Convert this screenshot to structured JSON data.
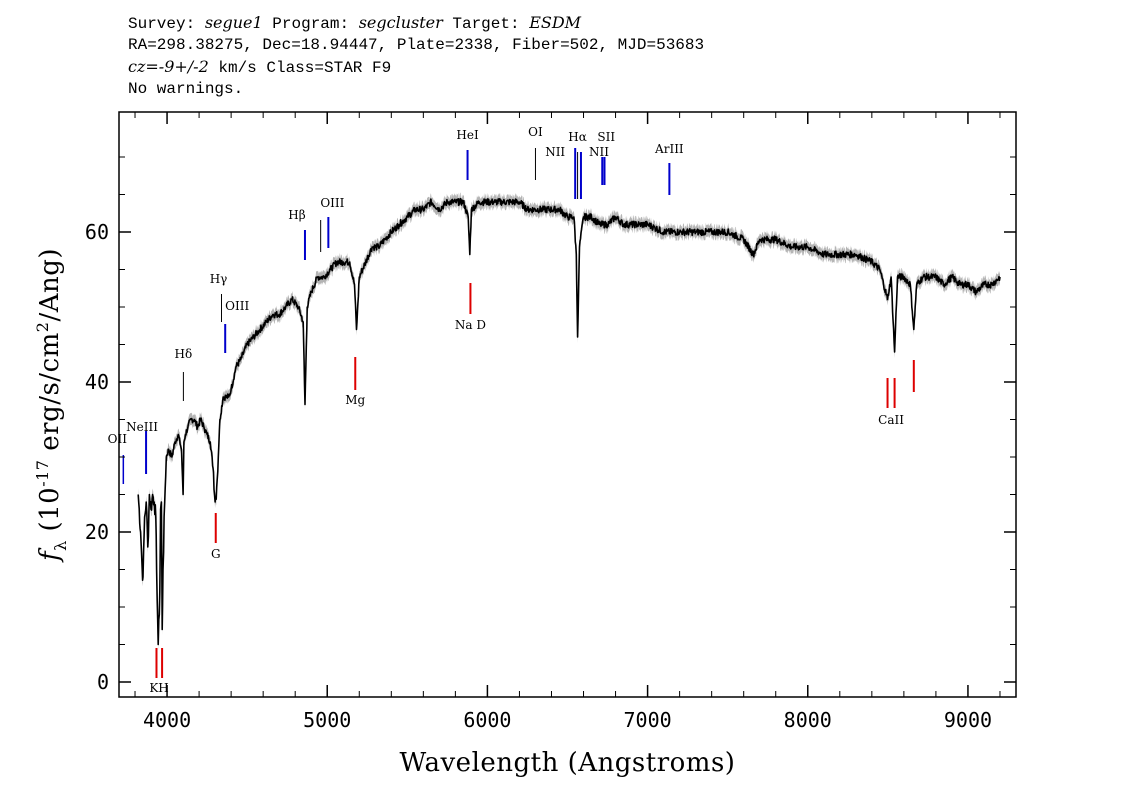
{
  "header": {
    "line1": {
      "survey_label": "Survey: ",
      "survey": "segue1",
      "program_label": " Program: ",
      "program": "segcluster",
      "target_label": " Target: ",
      "target": "ESDM"
    },
    "line2": "RA=298.38275, Dec=18.94447, Plate=2338, Fiber=502, MJD=53683",
    "line3": {
      "cz_label": "cz=",
      "cz_value": "-9+/-2",
      "cz_unit": " km/s Class=STAR F9"
    },
    "line4": "No warnings."
  },
  "chart_data": {
    "type": "line",
    "xlabel": "Wavelength (Angstroms)",
    "ylabel": "f_λ (10^-17 erg/s/cm^2/Ang)",
    "xlim": [
      3700,
      9300
    ],
    "ylim": [
      -2,
      76
    ],
    "x_ticks": [
      4000,
      5000,
      6000,
      7000,
      8000,
      9000
    ],
    "y_ticks": [
      0,
      20,
      40,
      60
    ],
    "series": [
      {
        "x": [
          3820,
          3835,
          3845,
          3850,
          3860,
          3870,
          3880,
          3890,
          3900,
          3910,
          3920,
          3930,
          3935,
          3945,
          3955,
          3960,
          3965,
          3970,
          3975,
          3985,
          3995,
          4010,
          4030,
          4050,
          4070,
          4090,
          4100,
          4105,
          4115,
          4130,
          4150,
          4170,
          4190,
          4210,
          4230,
          4250,
          4270,
          4290,
          4300,
          4310,
          4320,
          4330,
          4350,
          4370,
          4385,
          4400,
          4430,
          4460,
          4500,
          4540,
          4580,
          4620,
          4660,
          4700,
          4740,
          4780,
          4820,
          4850,
          4861,
          4875,
          4900,
          4940,
          4980,
          5020,
          5060,
          5100,
          5140,
          5170,
          5183,
          5200,
          5240,
          5280,
          5320,
          5360,
          5400,
          5450,
          5500,
          5550,
          5600,
          5650,
          5700,
          5750,
          5800,
          5850,
          5880,
          5890,
          5900,
          5950,
          6000,
          6050,
          6100,
          6150,
          6200,
          6250,
          6300,
          6350,
          6400,
          6450,
          6500,
          6540,
          6555,
          6563,
          6575,
          6600,
          6650,
          6700,
          6750,
          6800,
          6850,
          6900,
          6950,
          7000,
          7100,
          7200,
          7300,
          7400,
          7500,
          7600,
          7660,
          7700,
          7800,
          7900,
          8000,
          8100,
          8200,
          8300,
          8400,
          8450,
          8498,
          8520,
          8542,
          8560,
          8600,
          8640,
          8662,
          8680,
          8720,
          8760,
          8800,
          8850,
          8900,
          8950,
          9000,
          9050,
          9100,
          9150,
          9200
        ],
        "y": [
          25,
          20,
          15,
          14,
          22,
          24,
          18,
          25,
          23,
          25,
          24,
          22,
          15,
          5,
          12,
          23,
          24,
          7,
          15,
          24,
          30,
          31,
          30,
          32,
          33,
          31,
          25,
          32,
          33,
          34,
          35,
          35,
          34,
          35,
          34,
          33,
          32,
          28,
          24,
          26,
          30,
          35,
          38,
          38,
          38,
          39,
          42,
          43,
          45,
          46,
          47,
          48,
          49,
          49,
          50,
          51,
          50,
          48,
          37,
          50,
          52,
          54,
          54,
          55,
          56,
          56,
          56,
          53,
          47,
          54,
          56,
          58,
          58,
          59,
          60,
          61,
          62,
          63,
          63,
          64,
          63,
          64,
          64,
          64,
          62,
          57,
          63,
          64,
          64,
          64,
          64,
          64,
          64,
          63,
          63,
          63,
          63,
          63,
          62,
          62,
          57,
          46,
          58,
          62,
          62,
          61,
          61,
          62,
          61,
          61,
          61,
          61,
          60,
          60,
          60,
          60,
          60,
          59,
          57,
          59,
          59,
          58,
          58,
          57,
          57,
          57,
          56,
          55,
          51,
          54,
          44,
          54,
          54,
          53,
          47,
          53,
          54,
          54,
          54,
          53,
          54,
          53,
          53,
          52,
          53,
          53,
          54
        ]
      }
    ],
    "emission_lines": [
      {
        "name": "OII",
        "x": 3727
      },
      {
        "name": "NeIII",
        "x": 3869
      },
      {
        "name": "Hδ",
        "x": 4102
      },
      {
        "name": "Hγ",
        "x": 4340
      },
      {
        "name": "OIII",
        "x": 4363
      },
      {
        "name": "Hβ",
        "x": 4861
      },
      {
        "name": "OIII",
        "x": 4959
      },
      {
        "name": "OIII",
        "x": 5007
      },
      {
        "name": "HeI",
        "x": 5876
      },
      {
        "name": "OI",
        "x": 6300
      },
      {
        "name": "NII",
        "x": 6548
      },
      {
        "name": "Hα",
        "x": 6563
      },
      {
        "name": "NII",
        "x": 6584
      },
      {
        "name": "SII",
        "x": 6717
      },
      {
        "name": "SII",
        "x": 6731
      },
      {
        "name": "ArIII",
        "x": 7136
      }
    ],
    "absorption_lines": [
      {
        "name": "K",
        "x": 3934
      },
      {
        "name": "H",
        "x": 3969
      },
      {
        "name": "G",
        "x": 4304
      },
      {
        "name": "Mg",
        "x": 5175
      },
      {
        "name": "Na D",
        "x": 5894
      },
      {
        "name": "CaII",
        "x": 8498
      },
      {
        "name": "CaII",
        "x": 8542
      },
      {
        "name": "CaII",
        "x": 8662
      }
    ],
    "colors": {
      "spectrum": "#000000",
      "error_band": "#b4b4b4",
      "emission": "#0000cc",
      "absorption": "#dd0000"
    }
  }
}
